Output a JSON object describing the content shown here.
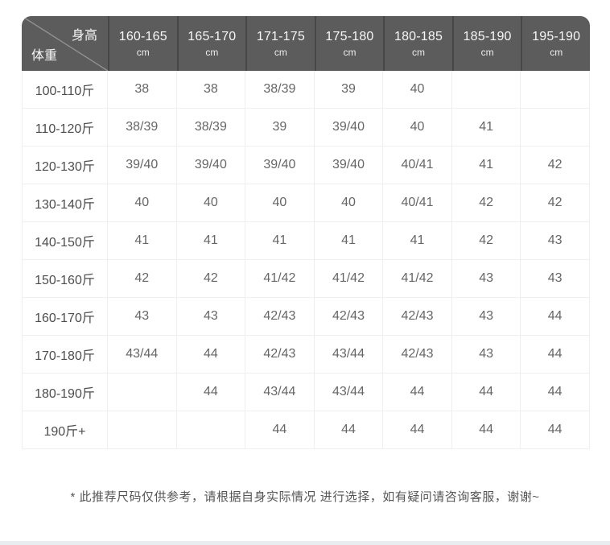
{
  "colors": {
    "page_bg": "#ffffff",
    "header_bg": "#5c5c5c",
    "header_separator": "#474747",
    "header_text": "#f7f7f7",
    "grid_line": "#efefef",
    "row_label_text": "#4d4d4d",
    "cell_text": "#666666",
    "note_text": "#555555",
    "diagonal_line": "#909090",
    "bottom_strip": "#e9edf0"
  },
  "header_corner": {
    "column_axis_label": "身高",
    "row_axis_label": "体重"
  },
  "note": "* 此推荐尺码仅供参考，请根据自身实际情况 进行选择，如有疑问请咨询客服，谢谢~",
  "chart_data": {
    "type": "table",
    "column_axis": "身高",
    "row_axis": "体重",
    "columns": [
      {
        "range": "160-165",
        "unit": "cm"
      },
      {
        "range": "165-170",
        "unit": "cm"
      },
      {
        "range": "171-175",
        "unit": "cm"
      },
      {
        "range": "175-180",
        "unit": "cm"
      },
      {
        "range": "180-185",
        "unit": "cm"
      },
      {
        "range": "185-190",
        "unit": "cm"
      },
      {
        "range": "195-190",
        "unit": "cm"
      }
    ],
    "rows": [
      {
        "label": "100-110斤",
        "values": [
          "38",
          "38",
          "38/39",
          "39",
          "40",
          "",
          ""
        ]
      },
      {
        "label": "110-120斤",
        "values": [
          "38/39",
          "38/39",
          "39",
          "39/40",
          "40",
          "41",
          ""
        ]
      },
      {
        "label": "120-130斤",
        "values": [
          "39/40",
          "39/40",
          "39/40",
          "39/40",
          "40/41",
          "41",
          "42"
        ]
      },
      {
        "label": "130-140斤",
        "values": [
          "40",
          "40",
          "40",
          "40",
          "40/41",
          "42",
          "42"
        ]
      },
      {
        "label": "140-150斤",
        "values": [
          "41",
          "41",
          "41",
          "41",
          "41",
          "42",
          "43"
        ]
      },
      {
        "label": "150-160斤",
        "values": [
          "42",
          "42",
          "41/42",
          "41/42",
          "41/42",
          "43",
          "43"
        ]
      },
      {
        "label": "160-170斤",
        "values": [
          "43",
          "43",
          "42/43",
          "42/43",
          "42/43",
          "43",
          "44"
        ]
      },
      {
        "label": "170-180斤",
        "values": [
          "43/44",
          "44",
          "42/43",
          "43/44",
          "42/43",
          "43",
          "44"
        ]
      },
      {
        "label": "180-190斤",
        "values": [
          "",
          "44",
          "43/44",
          "43/44",
          "44",
          "44",
          "44"
        ]
      },
      {
        "label": "190斤+",
        "values": [
          "",
          "",
          "44",
          "44",
          "44",
          "44",
          "44"
        ]
      }
    ]
  }
}
